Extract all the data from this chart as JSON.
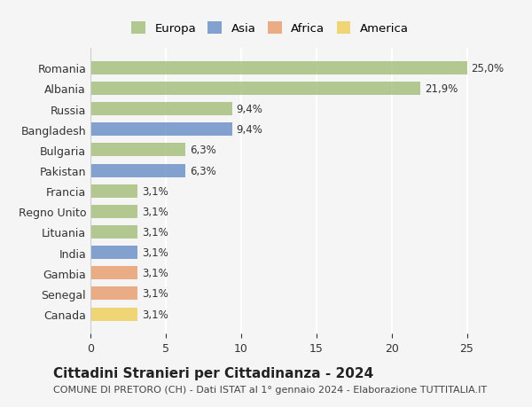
{
  "categories": [
    "Romania",
    "Albania",
    "Russia",
    "Bangladesh",
    "Bulgaria",
    "Pakistan",
    "Francia",
    "Regno Unito",
    "Lituania",
    "India",
    "Gambia",
    "Senegal",
    "Canada"
  ],
  "values": [
    25.0,
    21.9,
    9.4,
    9.4,
    6.3,
    6.3,
    3.1,
    3.1,
    3.1,
    3.1,
    3.1,
    3.1,
    3.1
  ],
  "labels": [
    "25,0%",
    "21,9%",
    "9,4%",
    "9,4%",
    "6,3%",
    "6,3%",
    "3,1%",
    "3,1%",
    "3,1%",
    "3,1%",
    "3,1%",
    "3,1%",
    "3,1%"
  ],
  "continents": [
    "Europa",
    "Europa",
    "Europa",
    "Asia",
    "Europa",
    "Asia",
    "Europa",
    "Europa",
    "Europa",
    "Asia",
    "Africa",
    "Africa",
    "America"
  ],
  "colors": {
    "Europa": "#a8c080",
    "Asia": "#6e93c8",
    "Africa": "#e8a070",
    "America": "#f0d060"
  },
  "legend_order": [
    "Europa",
    "Asia",
    "Africa",
    "America"
  ],
  "title": "Cittadini Stranieri per Cittadinanza - 2024",
  "subtitle": "COMUNE DI PRETORO (CH) - Dati ISTAT al 1° gennaio 2024 - Elaborazione TUTTITALIA.IT",
  "xlim": [
    0,
    26.5
  ],
  "xticks": [
    0,
    5,
    10,
    15,
    20,
    25
  ],
  "background_color": "#f5f5f5",
  "grid_color": "#ffffff",
  "bar_alpha": 0.85,
  "title_fontsize": 11,
  "subtitle_fontsize": 8
}
